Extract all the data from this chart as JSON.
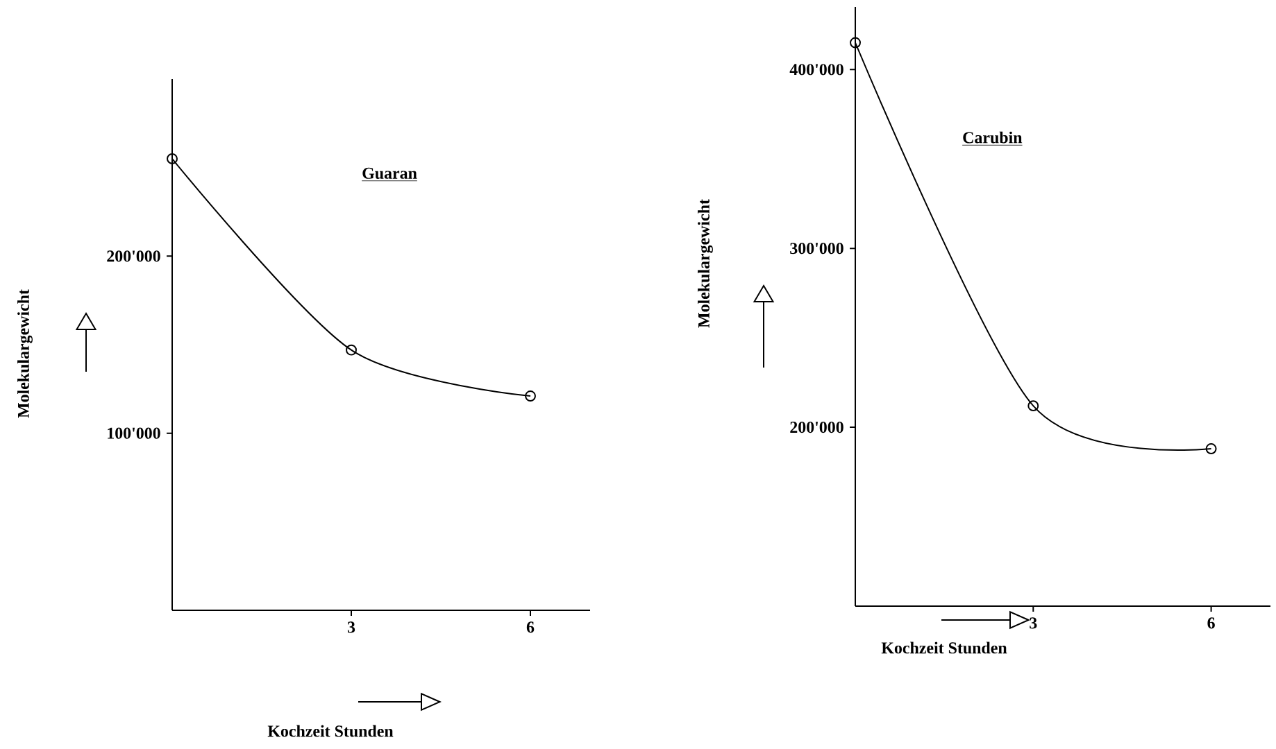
{
  "chart_data": [
    {
      "type": "line",
      "title": "Guaran",
      "xlabel": "Kochzeit Stunden",
      "ylabel": "Molekulargewicht",
      "color": "#000000",
      "marker": "circle",
      "x": [
        0,
        3,
        6
      ],
      "values": [
        255000,
        147000,
        121000
      ],
      "xlim": [
        0,
        7
      ],
      "ylim": [
        0,
        300000
      ],
      "xticks": [
        3,
        6
      ],
      "yticks": [
        {
          "value": 100000,
          "label": "100'000"
        },
        {
          "value": 200000,
          "label": "200'000"
        }
      ]
    },
    {
      "type": "line",
      "title": "Carubin",
      "xlabel": "Kochzeit Stunden",
      "ylabel": "Molekulargewicht",
      "color": "#000000",
      "marker": "circle",
      "x": [
        0,
        3,
        6
      ],
      "values": [
        415000,
        212000,
        188000
      ],
      "xlim": [
        0,
        7
      ],
      "ylim": [
        100000,
        435000
      ],
      "xticks": [
        3,
        6
      ],
      "yticks": [
        {
          "value": 200000,
          "label": "200'000"
        },
        {
          "value": 300000,
          "label": "300'000"
        },
        {
          "value": 400000,
          "label": "400'000"
        }
      ]
    }
  ]
}
